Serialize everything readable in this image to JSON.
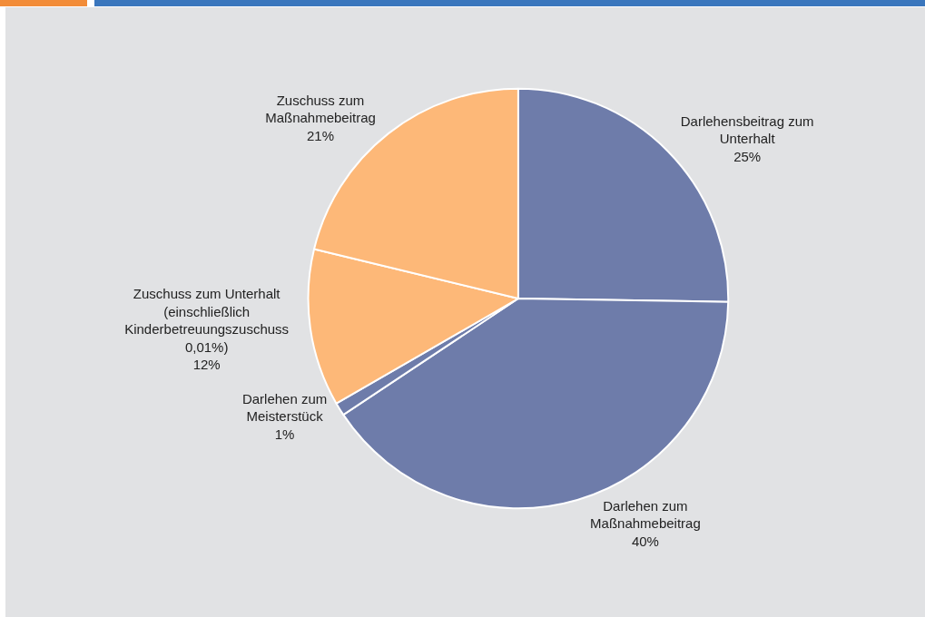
{
  "chart_data": {
    "type": "pie",
    "categories": [
      "Darlehensbeitrag zum Unterhalt",
      "Darlehen zum Maßnahmebeitrag",
      "Darlehen zum Meisterstück",
      "Zuschuss zum Unterhalt (einschließlich Kinderbetreuungszuschuss 0,01%)",
      "Zuschuss zum Maßnahmebeitrag"
    ],
    "values": [
      25,
      40,
      1,
      12,
      21
    ],
    "value_labels": [
      "25%",
      "40%",
      "1%",
      "12%",
      "21%"
    ],
    "colors": [
      "#6e7caa",
      "#6e7caa",
      "#6e7caa",
      "#fdb878",
      "#fdb878"
    ],
    "legend": false
  }
}
